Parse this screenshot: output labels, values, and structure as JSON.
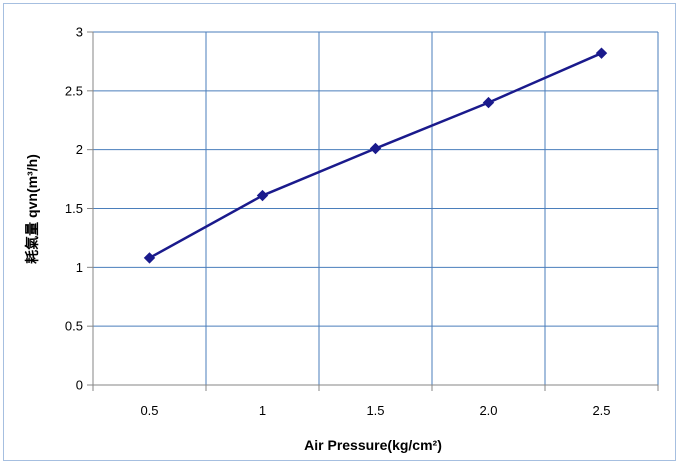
{
  "chart_data": {
    "type": "line",
    "title": "",
    "xlabel": "Air Pressure(kg/cm²)",
    "ylabel": "耗氣量 qvn(m³/h)",
    "categories": [
      "0.5",
      "1",
      "1.5",
      "2.0",
      "2.5"
    ],
    "series": [
      {
        "values": [
          1.08,
          1.61,
          2.01,
          2.4,
          2.82
        ],
        "color": "#1a1a8c",
        "marker": "diamond"
      }
    ],
    "ylim": [
      0,
      3
    ],
    "yticks": [
      "0",
      "0.5",
      "1",
      "1.5",
      "2",
      "2.5",
      "3"
    ],
    "grid": true,
    "legend": "none"
  }
}
